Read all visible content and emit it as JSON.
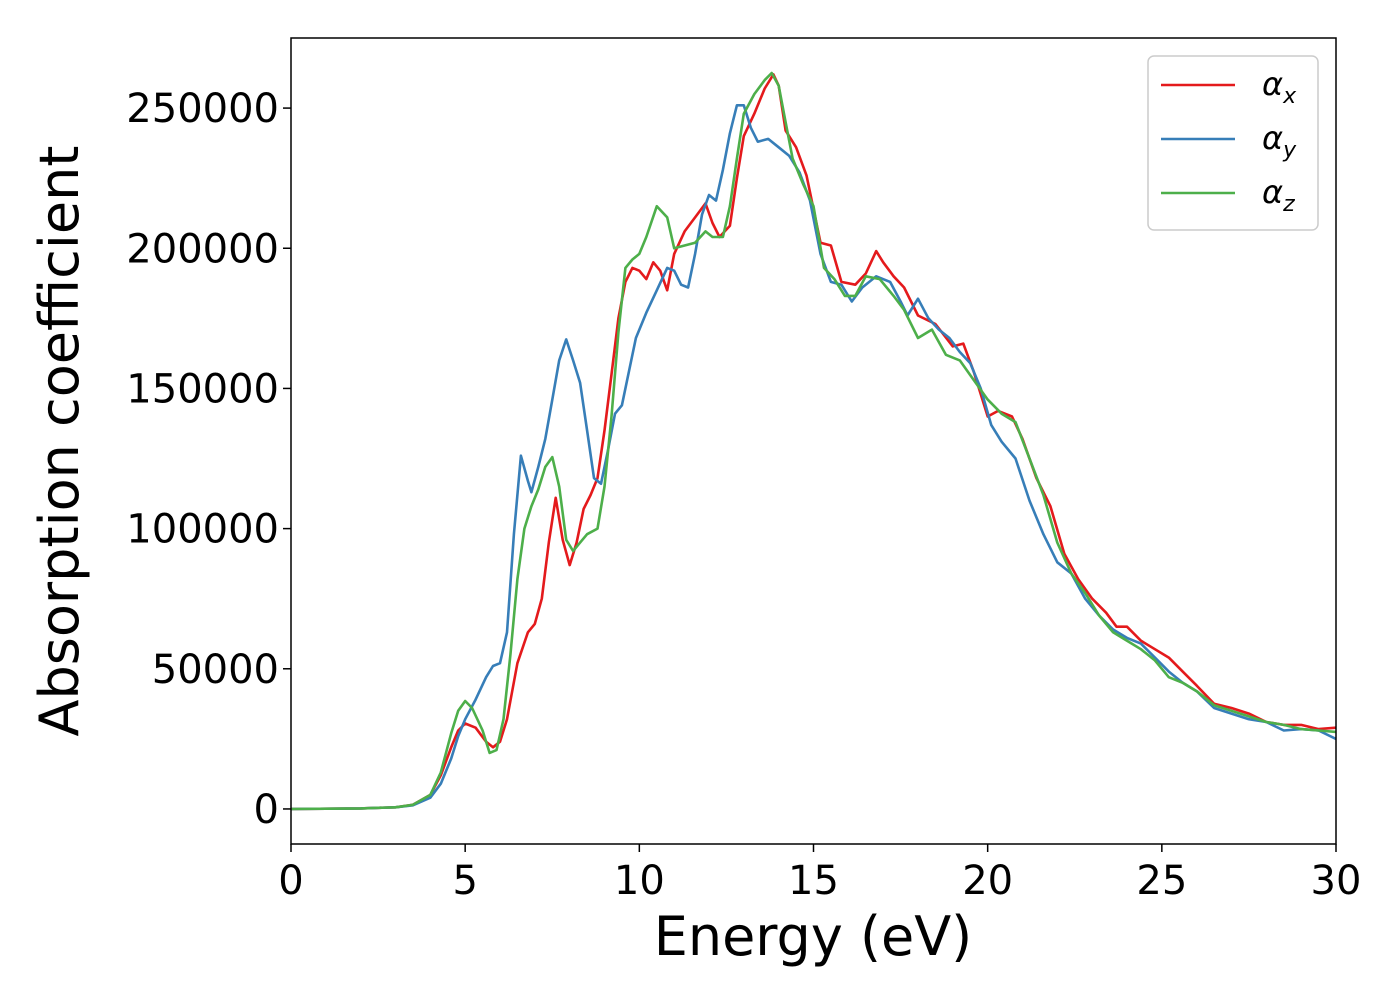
{
  "chart_data": {
    "type": "line",
    "title": "",
    "xlabel": "Energy (eV)",
    "ylabel": "Absorption coefficient",
    "xlim": [
      0,
      30
    ],
    "ylim": [
      -12500,
      275000
    ],
    "xticks": [
      0,
      5,
      10,
      15,
      20,
      25,
      30
    ],
    "yticks": [
      0,
      50000,
      100000,
      150000,
      200000,
      250000
    ],
    "grid": false,
    "legend": "top-right",
    "series": [
      {
        "name": "α",
        "subscript": "x",
        "color": "#e41a1c",
        "points": [
          [
            0,
            0
          ],
          [
            2,
            200
          ],
          [
            3,
            600
          ],
          [
            3.5,
            1500
          ],
          [
            4,
            5000
          ],
          [
            4.3,
            12000
          ],
          [
            4.6,
            22000
          ],
          [
            4.8,
            28000
          ],
          [
            5.0,
            30500
          ],
          [
            5.3,
            29000
          ],
          [
            5.6,
            24000
          ],
          [
            5.8,
            22000
          ],
          [
            6.0,
            24000
          ],
          [
            6.2,
            32000
          ],
          [
            6.5,
            52000
          ],
          [
            6.8,
            63000
          ],
          [
            7.0,
            66000
          ],
          [
            7.2,
            75000
          ],
          [
            7.4,
            95000
          ],
          [
            7.6,
            111000
          ],
          [
            7.8,
            96000
          ],
          [
            8.0,
            87000
          ],
          [
            8.2,
            95000
          ],
          [
            8.4,
            107000
          ],
          [
            8.6,
            112000
          ],
          [
            8.8,
            118000
          ],
          [
            9.0,
            135000
          ],
          [
            9.2,
            155000
          ],
          [
            9.4,
            175000
          ],
          [
            9.6,
            188000
          ],
          [
            9.8,
            193000
          ],
          [
            10.0,
            192000
          ],
          [
            10.2,
            189000
          ],
          [
            10.4,
            195000
          ],
          [
            10.6,
            192000
          ],
          [
            10.8,
            185000
          ],
          [
            11.0,
            198000
          ],
          [
            11.3,
            206000
          ],
          [
            11.6,
            211000
          ],
          [
            11.9,
            216000
          ],
          [
            12.1,
            209000
          ],
          [
            12.3,
            204000
          ],
          [
            12.6,
            208000
          ],
          [
            12.8,
            225000
          ],
          [
            13.0,
            240000
          ],
          [
            13.3,
            248000
          ],
          [
            13.6,
            257000
          ],
          [
            13.85,
            262000
          ],
          [
            14.0,
            258000
          ],
          [
            14.2,
            242000
          ],
          [
            14.5,
            236000
          ],
          [
            14.8,
            226000
          ],
          [
            15.0,
            214000
          ],
          [
            15.2,
            202000
          ],
          [
            15.5,
            201000
          ],
          [
            15.8,
            188000
          ],
          [
            16.2,
            187000
          ],
          [
            16.5,
            191000
          ],
          [
            16.8,
            199000
          ],
          [
            17.0,
            195000
          ],
          [
            17.3,
            190000
          ],
          [
            17.6,
            186000
          ],
          [
            18.0,
            176000
          ],
          [
            18.5,
            173000
          ],
          [
            19.0,
            165000
          ],
          [
            19.3,
            166000
          ],
          [
            19.6,
            156000
          ],
          [
            20.0,
            140000
          ],
          [
            20.3,
            142000
          ],
          [
            20.7,
            140000
          ],
          [
            21.0,
            132000
          ],
          [
            21.4,
            118000
          ],
          [
            21.8,
            108000
          ],
          [
            22.2,
            91000
          ],
          [
            22.6,
            82000
          ],
          [
            23.0,
            75000
          ],
          [
            23.4,
            70000
          ],
          [
            23.7,
            65000
          ],
          [
            24.0,
            65000
          ],
          [
            24.4,
            60000
          ],
          [
            24.8,
            57000
          ],
          [
            25.2,
            54000
          ],
          [
            25.6,
            49000
          ],
          [
            26.0,
            44000
          ],
          [
            26.5,
            37500
          ],
          [
            27.0,
            36000
          ],
          [
            27.5,
            34000
          ],
          [
            28.0,
            31000
          ],
          [
            28.5,
            30000
          ],
          [
            29.0,
            30000
          ],
          [
            29.5,
            28500
          ],
          [
            30.0,
            29000
          ]
        ]
      },
      {
        "name": "α",
        "subscript": "y",
        "color": "#377eb8",
        "points": [
          [
            0,
            0
          ],
          [
            2,
            200
          ],
          [
            3,
            600
          ],
          [
            3.5,
            1300
          ],
          [
            4,
            4000
          ],
          [
            4.3,
            9000
          ],
          [
            4.6,
            18000
          ],
          [
            4.8,
            26000
          ],
          [
            5.0,
            32000
          ],
          [
            5.3,
            39000
          ],
          [
            5.6,
            47000
          ],
          [
            5.8,
            51000
          ],
          [
            6.0,
            52000
          ],
          [
            6.2,
            63000
          ],
          [
            6.4,
            98000
          ],
          [
            6.6,
            126000
          ],
          [
            6.8,
            117000
          ],
          [
            6.9,
            113000
          ],
          [
            7.1,
            122000
          ],
          [
            7.3,
            132000
          ],
          [
            7.5,
            146000
          ],
          [
            7.7,
            160000
          ],
          [
            7.9,
            167500
          ],
          [
            8.1,
            160000
          ],
          [
            8.3,
            152000
          ],
          [
            8.5,
            135000
          ],
          [
            8.7,
            118000
          ],
          [
            8.9,
            116000
          ],
          [
            9.1,
            128000
          ],
          [
            9.3,
            141000
          ],
          [
            9.5,
            144000
          ],
          [
            9.7,
            156000
          ],
          [
            9.9,
            168000
          ],
          [
            10.2,
            177000
          ],
          [
            10.5,
            185000
          ],
          [
            10.8,
            193000
          ],
          [
            11.0,
            192000
          ],
          [
            11.2,
            187000
          ],
          [
            11.4,
            186000
          ],
          [
            11.6,
            198000
          ],
          [
            11.8,
            212000
          ],
          [
            12.0,
            219000
          ],
          [
            12.2,
            217000
          ],
          [
            12.4,
            228000
          ],
          [
            12.6,
            241000
          ],
          [
            12.8,
            251000
          ],
          [
            13.0,
            251000
          ],
          [
            13.2,
            243000
          ],
          [
            13.4,
            238000
          ],
          [
            13.7,
            239000
          ],
          [
            14.0,
            236000
          ],
          [
            14.3,
            233000
          ],
          [
            14.6,
            227000
          ],
          [
            14.9,
            217000
          ],
          [
            15.2,
            198000
          ],
          [
            15.5,
            188000
          ],
          [
            15.8,
            187000
          ],
          [
            16.1,
            181000
          ],
          [
            16.4,
            186000
          ],
          [
            16.8,
            190000
          ],
          [
            17.2,
            188000
          ],
          [
            17.5,
            181000
          ],
          [
            17.7,
            176000
          ],
          [
            18.0,
            182000
          ],
          [
            18.3,
            175000
          ],
          [
            18.6,
            171000
          ],
          [
            18.9,
            168000
          ],
          [
            19.2,
            163000
          ],
          [
            19.5,
            159000
          ],
          [
            19.8,
            150000
          ],
          [
            20.1,
            137000
          ],
          [
            20.4,
            131000
          ],
          [
            20.8,
            125000
          ],
          [
            21.2,
            110000
          ],
          [
            21.6,
            98000
          ],
          [
            22.0,
            88000
          ],
          [
            22.4,
            84000
          ],
          [
            22.8,
            75000
          ],
          [
            23.2,
            69000
          ],
          [
            23.6,
            64000
          ],
          [
            24.0,
            61000
          ],
          [
            24.4,
            59000
          ],
          [
            24.8,
            54000
          ],
          [
            25.2,
            49000
          ],
          [
            25.6,
            45000
          ],
          [
            26.0,
            42000
          ],
          [
            26.5,
            36000
          ],
          [
            27.0,
            34000
          ],
          [
            27.5,
            32000
          ],
          [
            28.0,
            31000
          ],
          [
            28.5,
            28000
          ],
          [
            29.0,
            28500
          ],
          [
            29.5,
            28000
          ],
          [
            30.0,
            25000
          ]
        ]
      },
      {
        "name": "α",
        "subscript": "z",
        "color": "#4daf4a",
        "points": [
          [
            0,
            0
          ],
          [
            2,
            200
          ],
          [
            3,
            600
          ],
          [
            3.5,
            1500
          ],
          [
            4,
            5000
          ],
          [
            4.3,
            13000
          ],
          [
            4.6,
            27000
          ],
          [
            4.8,
            35000
          ],
          [
            5.0,
            38500
          ],
          [
            5.2,
            36000
          ],
          [
            5.5,
            28000
          ],
          [
            5.7,
            20000
          ],
          [
            5.9,
            21000
          ],
          [
            6.1,
            32000
          ],
          [
            6.3,
            55000
          ],
          [
            6.5,
            82000
          ],
          [
            6.7,
            100000
          ],
          [
            6.9,
            108000
          ],
          [
            7.1,
            114000
          ],
          [
            7.3,
            122000
          ],
          [
            7.5,
            125500
          ],
          [
            7.7,
            115000
          ],
          [
            7.9,
            96000
          ],
          [
            8.1,
            92000
          ],
          [
            8.3,
            95000
          ],
          [
            8.5,
            98000
          ],
          [
            8.8,
            100000
          ],
          [
            9.0,
            115000
          ],
          [
            9.2,
            140000
          ],
          [
            9.4,
            170000
          ],
          [
            9.6,
            193000
          ],
          [
            9.8,
            196000
          ],
          [
            10.0,
            198000
          ],
          [
            10.2,
            204000
          ],
          [
            10.5,
            215000
          ],
          [
            10.8,
            211000
          ],
          [
            11.0,
            200000
          ],
          [
            11.3,
            201000
          ],
          [
            11.6,
            202000
          ],
          [
            11.9,
            206000
          ],
          [
            12.1,
            204000
          ],
          [
            12.4,
            204000
          ],
          [
            12.6,
            215000
          ],
          [
            12.8,
            232000
          ],
          [
            13.0,
            248000
          ],
          [
            13.3,
            255000
          ],
          [
            13.6,
            260000
          ],
          [
            13.8,
            262500
          ],
          [
            14.0,
            258000
          ],
          [
            14.2,
            245000
          ],
          [
            14.4,
            232000
          ],
          [
            14.7,
            223000
          ],
          [
            15.0,
            215000
          ],
          [
            15.3,
            193000
          ],
          [
            15.6,
            189000
          ],
          [
            15.9,
            183000
          ],
          [
            16.2,
            183000
          ],
          [
            16.5,
            190000
          ],
          [
            16.9,
            189000
          ],
          [
            17.3,
            183000
          ],
          [
            17.6,
            178000
          ],
          [
            18.0,
            168000
          ],
          [
            18.4,
            171000
          ],
          [
            18.8,
            162000
          ],
          [
            19.2,
            160000
          ],
          [
            19.6,
            153000
          ],
          [
            20.0,
            146000
          ],
          [
            20.4,
            141000
          ],
          [
            20.8,
            138000
          ],
          [
            21.2,
            125000
          ],
          [
            21.6,
            112000
          ],
          [
            22.0,
            95000
          ],
          [
            22.4,
            84000
          ],
          [
            22.8,
            77000
          ],
          [
            23.2,
            69000
          ],
          [
            23.6,
            63000
          ],
          [
            24.0,
            60000
          ],
          [
            24.4,
            57000
          ],
          [
            24.8,
            53000
          ],
          [
            25.2,
            47000
          ],
          [
            25.6,
            45000
          ],
          [
            26.0,
            42000
          ],
          [
            26.5,
            37000
          ],
          [
            27.0,
            35000
          ],
          [
            27.5,
            33000
          ],
          [
            28.0,
            31000
          ],
          [
            28.5,
            30000
          ],
          [
            29.0,
            28500
          ],
          [
            29.5,
            28000
          ],
          [
            30.0,
            27500
          ]
        ]
      }
    ]
  }
}
